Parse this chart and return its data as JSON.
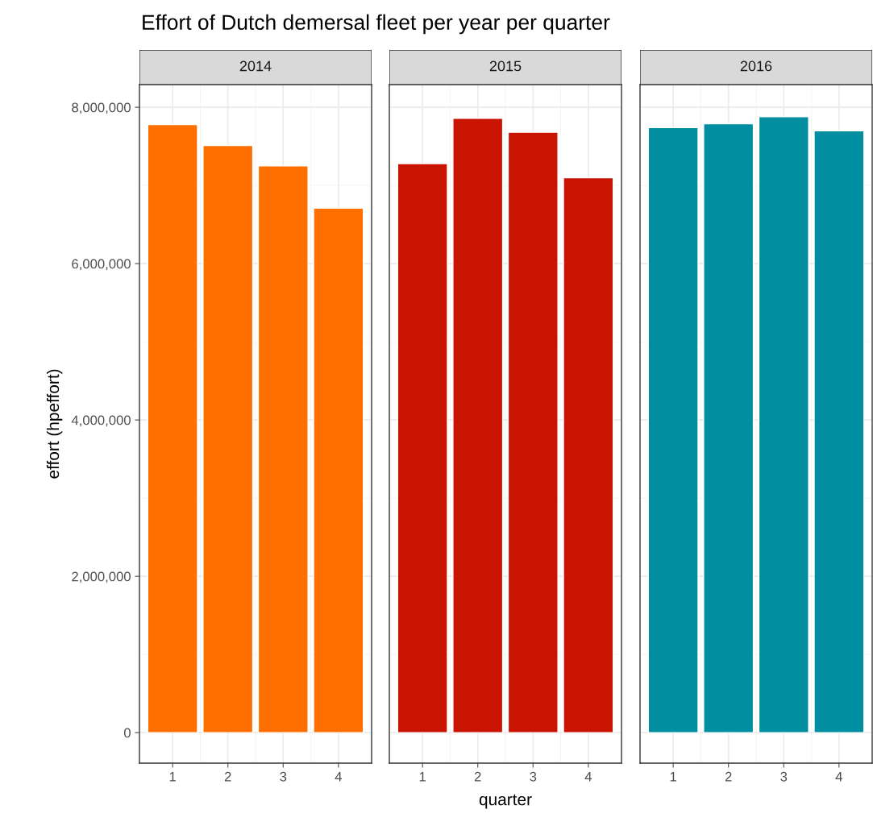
{
  "chart_data": [
    {
      "type": "bar",
      "title": "Effort of Dutch demersal fleet per year per quarter",
      "subtitle": "2014",
      "ylabel": "effort (hpeffort)",
      "categories": [
        "1",
        "2",
        "3",
        "4"
      ],
      "values": [
        7780000,
        7510000,
        7250000,
        6710000
      ],
      "color": "#ff6f00",
      "ylim": [
        -390000,
        8290000
      ],
      "yticks": [
        {
          "value": 0,
          "label": "0"
        },
        {
          "value": 2000000,
          "label": "2,000,000"
        },
        {
          "value": 4000000,
          "label": "4,000,000"
        },
        {
          "value": 6000000,
          "label": "6,000,000"
        },
        {
          "value": 8000000,
          "label": "8,000,000"
        }
      ],
      "grid": true
    },
    {
      "type": "bar",
      "subtitle": "2015",
      "xlabel": "quarter",
      "categories": [
        "1",
        "2",
        "3",
        "4"
      ],
      "values": [
        7280000,
        7860000,
        7680000,
        7100000
      ],
      "color": "#c81400",
      "ylim": [
        -390000,
        8290000
      ],
      "yticks": [
        0,
        2000000,
        4000000,
        6000000,
        8000000
      ],
      "grid": true,
      "tick_labels": "x"
    },
    {
      "type": "bar",
      "subtitle": "2016",
      "categories": [
        "1",
        "2",
        "3",
        "4"
      ],
      "values": [
        7740000,
        7790000,
        7880000,
        7700000
      ],
      "color": "#008ea0",
      "ylim": [
        -390000,
        8290000
      ],
      "yticks": [
        0,
        2000000,
        4000000,
        6000000,
        8000000
      ],
      "grid": true,
      "tick_labels": "x"
    }
  ]
}
